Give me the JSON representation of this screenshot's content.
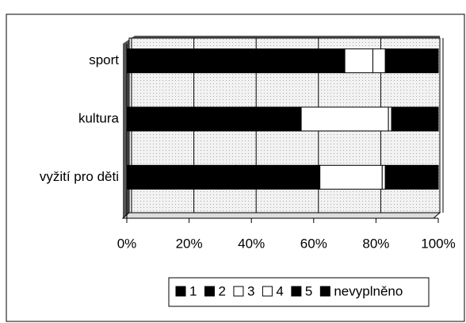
{
  "chart_data": {
    "type": "stacked_barh",
    "categories": [
      "sport",
      "kultura",
      "vyžití pro děti"
    ],
    "series": [
      {
        "name": "1",
        "color": "#000000",
        "values": [
          45,
          30,
          35
        ]
      },
      {
        "name": "2",
        "color": "#000000",
        "values": [
          25,
          26,
          27
        ]
      },
      {
        "name": "3",
        "color": "#ffffff",
        "values": [
          9,
          28,
          20
        ]
      },
      {
        "name": "4",
        "color": "#ffffff",
        "values": [
          4,
          1,
          1
        ]
      },
      {
        "name": "5",
        "color": "#000000",
        "values": [
          10,
          10,
          12
        ]
      },
      {
        "name": "nevyplněno",
        "color": "#000000",
        "values": [
          7,
          5,
          5
        ]
      }
    ],
    "xlim": [
      0,
      100
    ],
    "xticks": [
      {
        "value": 0,
        "label": "0%"
      },
      {
        "value": 20,
        "label": "20%"
      },
      {
        "value": 40,
        "label": "40%"
      },
      {
        "value": 60,
        "label": "60%"
      },
      {
        "value": 80,
        "label": "80%"
      },
      {
        "value": 100,
        "label": "100%"
      }
    ],
    "grid": true,
    "legend": "bottom"
  }
}
